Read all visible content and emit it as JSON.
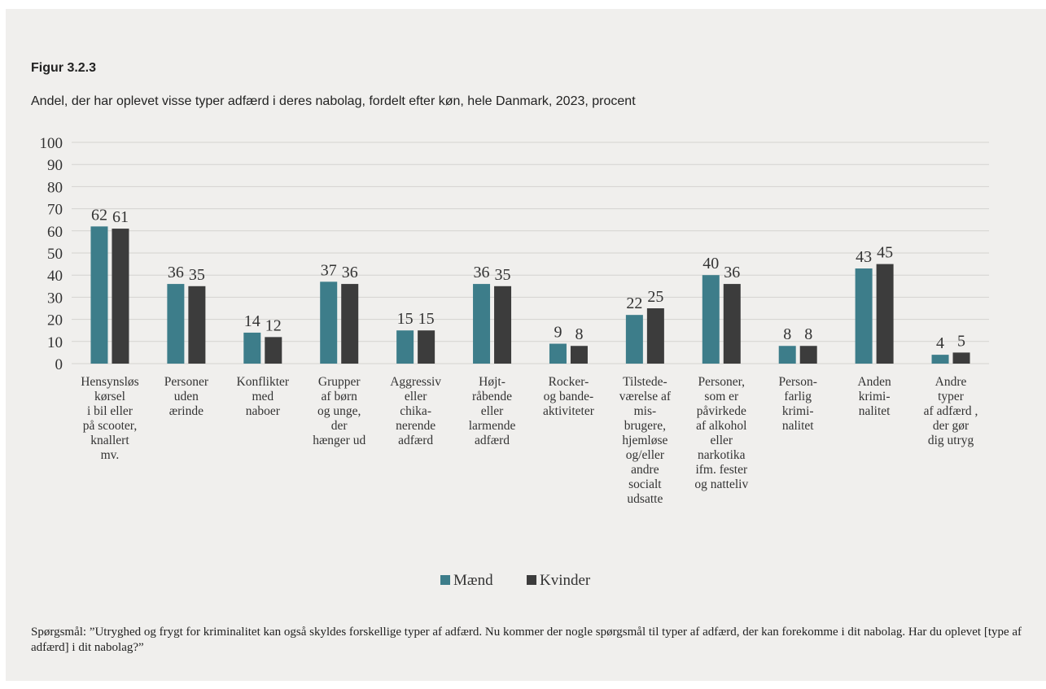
{
  "figure_label": "Figur 3.2.3",
  "figure_title": "Andel, der har oplevet visse typer adfærd i deres nabolag, fordelt efter køn, hele Danmark, 2023, procent",
  "footnote": "Spørgsmål: ”Utryghed og frygt for kriminalitet kan også skyldes forskellige typer af adfærd. Nu kommer der nogle spørgsmål til typer af adfærd, der kan forekomme i dit nabolag. Har du oplevet [type af adfærd] i dit nabolag?”",
  "colors": {
    "maend": "#3d7d8a",
    "kvinder": "#3c3c3c",
    "grid": "#d4d3d0",
    "background": "#f0efed"
  },
  "chart_data": {
    "type": "bar",
    "categories": [
      [
        "Hensynsløs",
        "kørsel",
        "i bil eller",
        "på scooter,",
        "knallert",
        "mv."
      ],
      [
        "Personer",
        "uden",
        "ærinde"
      ],
      [
        "Konflikter",
        "med",
        "naboer"
      ],
      [
        "Grupper",
        "af børn",
        "og unge,",
        "der",
        "hænger ud"
      ],
      [
        "Aggressiv",
        "eller",
        "chika-",
        "nerende",
        "adfærd"
      ],
      [
        "Højt-",
        "råbende",
        "eller",
        "larmende",
        "adfærd"
      ],
      [
        "Rocker-",
        "og bande-",
        "aktiviteter"
      ],
      [
        "Tilstede-",
        "værelse af",
        "mis-",
        "brugere,",
        "hjemløse",
        "og/eller",
        "andre",
        "socialt",
        "udsatte"
      ],
      [
        "Personer,",
        "som er",
        "påvirkede",
        "af alkohol",
        "eller",
        "narkotika",
        "ifm. fester",
        "og natteliv"
      ],
      [
        "Person-",
        "farlig",
        "krimi-",
        "nalitet"
      ],
      [
        "Anden",
        "krimi-",
        "nalitet"
      ],
      [
        "Andre",
        "typer",
        "af adfærd ,",
        "der gør",
        "dig utryg"
      ]
    ],
    "series": [
      {
        "name": "Mænd",
        "values": [
          62,
          36,
          14,
          37,
          15,
          36,
          9,
          22,
          40,
          8,
          43,
          4
        ]
      },
      {
        "name": "Kvinder",
        "values": [
          61,
          35,
          12,
          36,
          15,
          35,
          8,
          25,
          36,
          8,
          45,
          5
        ]
      }
    ],
    "ylim": [
      0,
      100
    ],
    "yticks": [
      0,
      10,
      20,
      30,
      40,
      50,
      60,
      70,
      80,
      90,
      100
    ],
    "grid": true,
    "legend": "bottom-center",
    "data_labels": true
  }
}
